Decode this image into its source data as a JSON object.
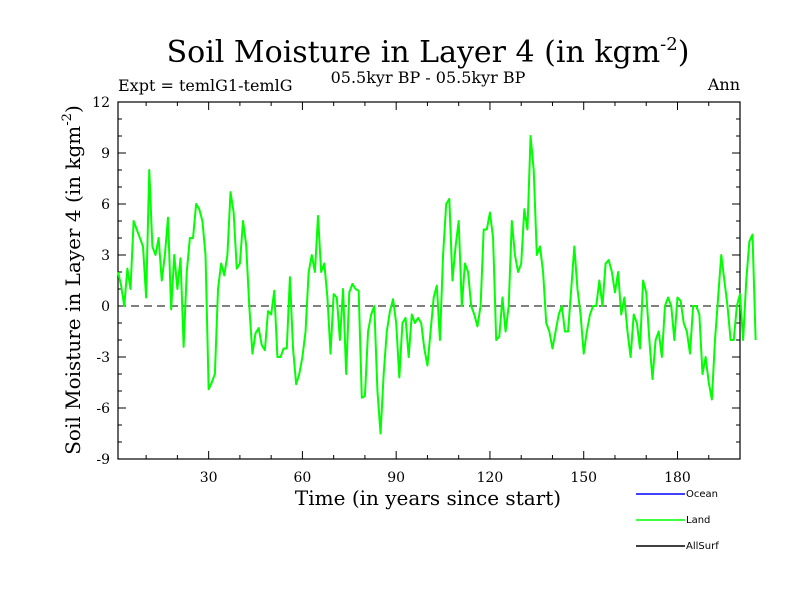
{
  "chart_data": {
    "type": "line",
    "title": "Soil Moisture in Layer 4 (in kgm",
    "title_sup": "-2",
    "title_end": ")",
    "subtitle_left": "Expt = temlG1-temlG",
    "subtitle_center": "05.5kyr BP - 05.5kyr BP",
    "subtitle_right": "Ann",
    "xlabel": "Time (in years since start)",
    "ylabel": "Soil Moisture in Layer 4 (in kgm",
    "ylabel_sup": "-2",
    "ylabel_end": ")",
    "xlim": [
      1,
      200
    ],
    "ylim": [
      -9,
      12
    ],
    "xticks": [
      30,
      60,
      90,
      120,
      150,
      180
    ],
    "yticks": [
      -9,
      -6,
      -3,
      0,
      3,
      6,
      9,
      12
    ],
    "zero_line": true,
    "legend_position": "bottom-right",
    "series": [
      {
        "name": "Ocean",
        "color": "#0000ff",
        "values": []
      },
      {
        "name": "Land",
        "color": "#00ff00",
        "x_start": 1,
        "x_step": 1,
        "values": [
          2.0,
          1.2,
          0.0,
          2.2,
          1.0,
          5.0,
          4.5,
          4.0,
          3.5,
          0.5,
          8.0,
          3.5,
          3.0,
          4.0,
          1.5,
          3.0,
          5.2,
          -0.2,
          3.0,
          1.0,
          2.8,
          -2.4,
          2.0,
          4.0,
          4.0,
          6.0,
          5.7,
          5.0,
          3.0,
          -4.9,
          -4.5,
          -4.0,
          1.0,
          2.5,
          1.8,
          3.0,
          6.7,
          5.5,
          2.2,
          2.5,
          5.0,
          3.6,
          0.0,
          -2.8,
          -1.6,
          -1.3,
          -2.3,
          -2.6,
          -0.3,
          -0.5,
          0.9,
          -3.0,
          -3.0,
          -2.5,
          -2.5,
          1.7,
          -2.5,
          -4.6,
          -4.0,
          -3.0,
          -1.5,
          2.0,
          3.0,
          2.0,
          5.3,
          2.0,
          2.5,
          0.5,
          -2.8,
          0.7,
          0.5,
          -2.0,
          1.0,
          -4.0,
          0.8,
          1.3,
          1.0,
          0.9,
          -5.4,
          -5.3,
          -1.5,
          -0.5,
          0.0,
          -5.0,
          -7.5,
          -4.0,
          -1.5,
          -0.3,
          0.4,
          -1.0,
          -4.2,
          -1.0,
          -0.7,
          -3.0,
          -0.5,
          -1.0,
          -0.7,
          -1.0,
          -2.5,
          -3.5,
          -1.5,
          0.5,
          1.2,
          -2.0,
          3.0,
          6.0,
          6.3,
          1.5,
          3.5,
          5.0,
          0.0,
          2.5,
          2.0,
          0.0,
          -0.5,
          -1.2,
          0.0,
          4.5,
          4.5,
          5.5,
          4.0,
          -2.0,
          -1.8,
          0.5,
          -1.5,
          0.0,
          5.0,
          3.0,
          2.0,
          2.5,
          5.7,
          4.5,
          10.0,
          8.0,
          3.0,
          3.5,
          2.0,
          -1.0,
          -1.5,
          -2.5,
          -1.5,
          -0.5,
          0.0,
          -1.5,
          -1.5,
          1.0,
          3.5,
          1.0,
          -0.5,
          -2.8,
          -1.5,
          -0.5,
          0.0,
          0.0,
          1.5,
          0.0,
          2.5,
          2.7,
          2.0,
          0.8,
          2.0,
          -0.5,
          0.5,
          -1.5,
          -3.0,
          -0.5,
          -1.0,
          -2.5,
          1.5,
          0.8,
          -2.0,
          -4.3,
          -2.0,
          -1.5,
          -3.0,
          0.0,
          0.5,
          0.0,
          -2.0,
          0.5,
          0.3,
          -1.0,
          -1.5,
          -2.8,
          0.0,
          0.0,
          -0.5,
          -4.0,
          -3.0,
          -4.5,
          -5.5,
          -2.0,
          0.5,
          3.0,
          1.5,
          0.0,
          -2.0,
          -2.0,
          0.0,
          0.7,
          -2.0,
          1.5,
          3.8,
          4.2,
          -2.0
        ]
      },
      {
        "name": "AllSurf",
        "color": "#000000",
        "values": []
      }
    ]
  }
}
